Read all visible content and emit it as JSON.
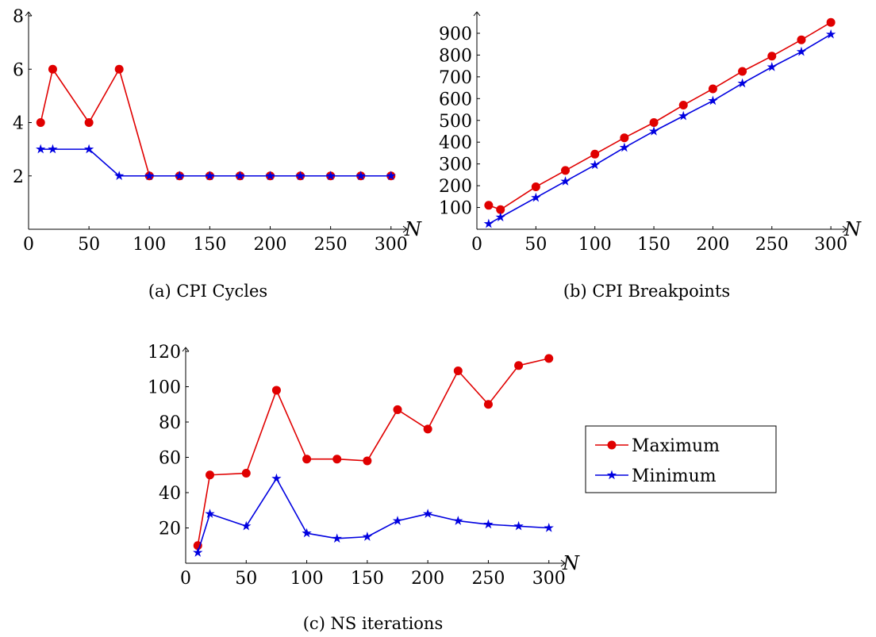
{
  "legend": {
    "entries": [
      {
        "label": "Maximum",
        "color": "#e00000",
        "marker": "circle"
      },
      {
        "label": "Minimum",
        "color": "#0000e0",
        "marker": "star"
      }
    ]
  },
  "chart_data": [
    {
      "type": "line",
      "caption": "(a) CPI Cycles",
      "xlabel": "N",
      "ylabel": "",
      "xlim": [
        0,
        310
      ],
      "ylim": [
        0,
        8
      ],
      "xticks": [
        0,
        50,
        100,
        150,
        200,
        250,
        300
      ],
      "yticks": [
        2,
        4,
        6,
        8
      ],
      "x": [
        10,
        20,
        50,
        75,
        100,
        125,
        150,
        175,
        200,
        225,
        250,
        275,
        300
      ],
      "series": [
        {
          "name": "Maximum",
          "color": "#e00000",
          "marker": "circle",
          "values": [
            4,
            6,
            4,
            6,
            2,
            2,
            2,
            2,
            2,
            2,
            2,
            2,
            2
          ]
        },
        {
          "name": "Minimum",
          "color": "#0000e0",
          "marker": "star",
          "values": [
            3,
            3,
            3,
            2,
            2,
            2,
            2,
            2,
            2,
            2,
            2,
            2,
            2
          ]
        }
      ]
    },
    {
      "type": "line",
      "caption": "(b) CPI Breakpoints",
      "xlabel": "N",
      "ylabel": "",
      "xlim": [
        0,
        310
      ],
      "ylim": [
        0,
        980
      ],
      "xticks": [
        0,
        50,
        100,
        150,
        200,
        250,
        300
      ],
      "yticks": [
        100,
        200,
        300,
        400,
        500,
        600,
        700,
        800,
        900
      ],
      "x": [
        10,
        20,
        50,
        75,
        100,
        125,
        150,
        175,
        200,
        225,
        250,
        275,
        300
      ],
      "series": [
        {
          "name": "Maximum",
          "color": "#e00000",
          "marker": "circle",
          "values": [
            110,
            90,
            195,
            270,
            345,
            420,
            490,
            570,
            645,
            725,
            795,
            870,
            950
          ]
        },
        {
          "name": "Minimum",
          "color": "#0000e0",
          "marker": "star",
          "values": [
            25,
            55,
            145,
            220,
            295,
            375,
            450,
            520,
            590,
            670,
            745,
            815,
            895
          ]
        }
      ]
    },
    {
      "type": "line",
      "caption": "(c) NS iterations",
      "xlabel": "N",
      "ylabel": "",
      "xlim": [
        0,
        310
      ],
      "ylim": [
        0,
        120
      ],
      "xticks": [
        0,
        50,
        100,
        150,
        200,
        250,
        300
      ],
      "yticks": [
        20,
        40,
        60,
        80,
        100,
        120
      ],
      "x": [
        10,
        20,
        50,
        75,
        100,
        125,
        150,
        175,
        200,
        225,
        250,
        275,
        300
      ],
      "series": [
        {
          "name": "Maximum",
          "color": "#e00000",
          "marker": "circle",
          "values": [
            10,
            50,
            51,
            98,
            59,
            59,
            58,
            87,
            76,
            109,
            90,
            112,
            116
          ]
        },
        {
          "name": "Minimum",
          "color": "#0000e0",
          "marker": "star",
          "values": [
            6,
            28,
            21,
            48,
            17,
            14,
            15,
            24,
            28,
            24,
            22,
            21,
            20
          ]
        }
      ]
    }
  ]
}
